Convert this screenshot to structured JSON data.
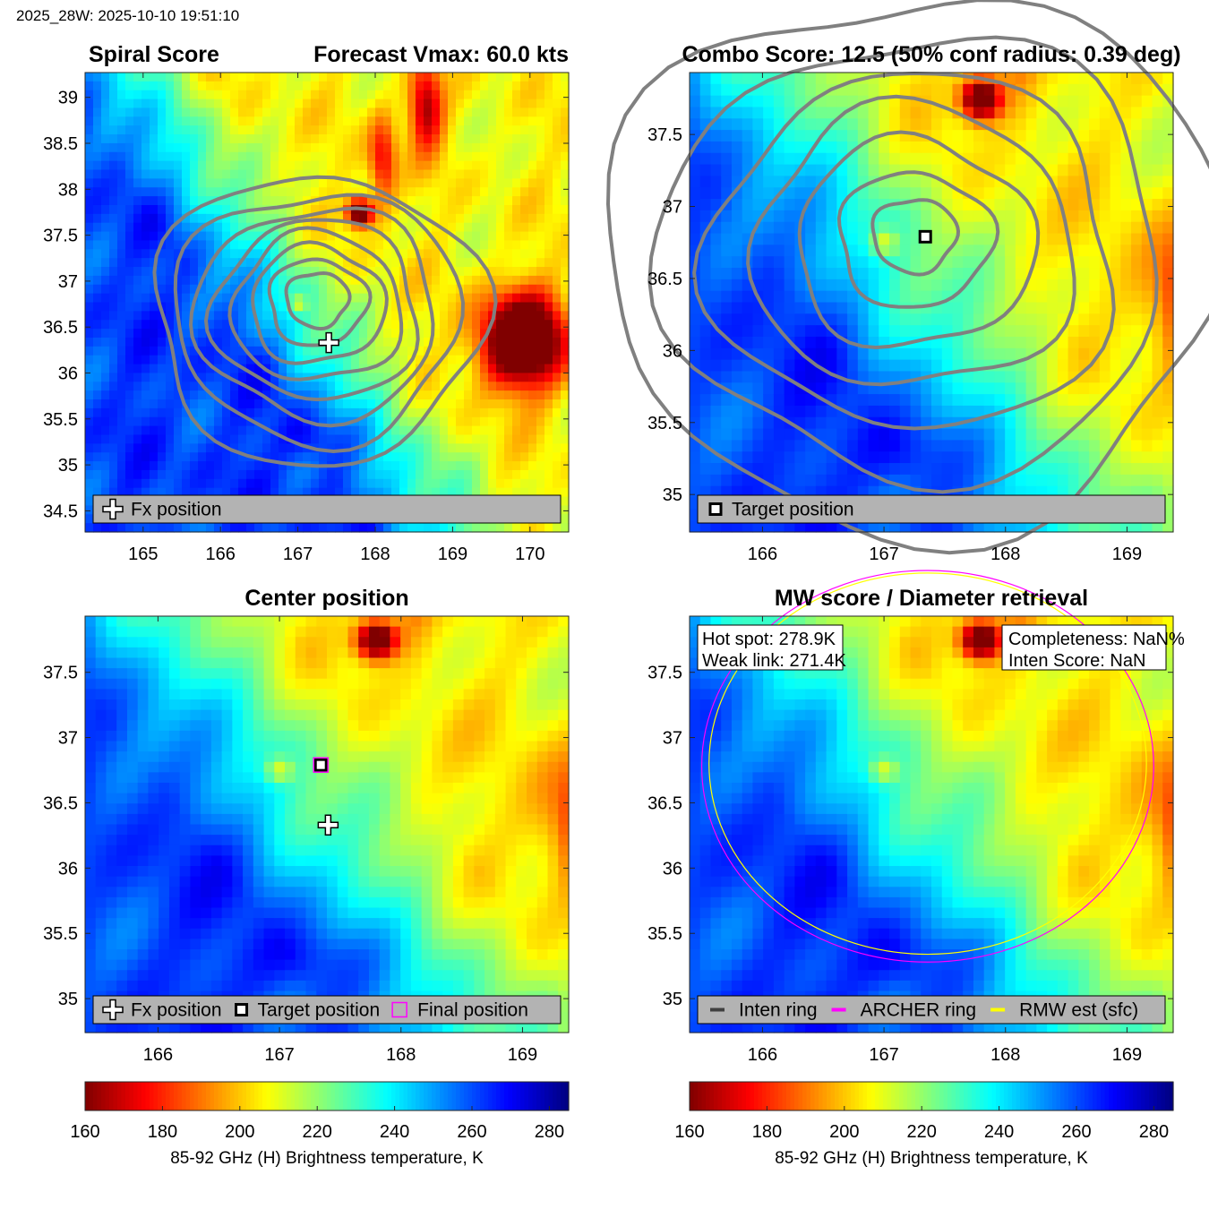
{
  "header": {
    "timestamp": "2025_28W: 2025-10-10 19:51:10"
  },
  "colors": {
    "contour": "#808080",
    "legend_bg": "#b3b3b3",
    "archer_ring": "#ff00ff",
    "rmw_ring": "#ffff00",
    "inten_ring": "#404040"
  },
  "colormap": {
    "name": "jet-reversed",
    "min": 160,
    "max": 285
  },
  "chart_data": [
    {
      "id": "spiral",
      "type": "heatmap",
      "title_left": "Spiral Score",
      "title_right": "Forecast Vmax: 60.0 kts",
      "xlim": [
        164.25,
        170.5
      ],
      "ylim": [
        34.27,
        39.27
      ],
      "xticks": [
        "165",
        "166",
        "167",
        "168",
        "169",
        "170"
      ],
      "xtick_values": [
        165,
        166,
        167,
        168,
        169,
        170
      ],
      "yticks": [
        "34.5",
        "35",
        "35.5",
        "36",
        "36.5",
        "37",
        "37.5",
        "38",
        "38.5",
        "39"
      ],
      "ytick_values": [
        34.5,
        35,
        35.5,
        36,
        36.5,
        37,
        37.5,
        38,
        38.5,
        39
      ],
      "markers": [
        {
          "kind": "fx-plus",
          "x": 167.4,
          "y": 36.33
        }
      ],
      "legend": [
        {
          "icon": "fx-plus",
          "label": "Fx position"
        }
      ],
      "contours": true
    },
    {
      "id": "combo",
      "type": "heatmap",
      "title": "Combo Score: 12.5  (50% conf radius: 0.39 deg)",
      "xlim": [
        165.4,
        169.38
      ],
      "ylim": [
        34.74,
        37.93
      ],
      "xticks": [
        "166",
        "167",
        "168",
        "169"
      ],
      "xtick_values": [
        166,
        167,
        168,
        169
      ],
      "yticks": [
        "35",
        "35.5",
        "36",
        "36.5",
        "37",
        "37.5"
      ],
      "ytick_values": [
        35,
        35.5,
        36,
        36.5,
        37,
        37.5
      ],
      "markers": [
        {
          "kind": "target-square",
          "x": 167.34,
          "y": 36.79
        }
      ],
      "legend": [
        {
          "icon": "target-square",
          "label": "Target position"
        }
      ],
      "contours": true
    },
    {
      "id": "center",
      "type": "heatmap",
      "title": "Center position",
      "xlim": [
        165.4,
        169.38
      ],
      "ylim": [
        34.74,
        37.93
      ],
      "xticks": [
        "166",
        "167",
        "168",
        "169"
      ],
      "xtick_values": [
        166,
        167,
        168,
        169
      ],
      "yticks": [
        "35",
        "35.5",
        "36",
        "36.5",
        "37",
        "37.5"
      ],
      "ytick_values": [
        35,
        35.5,
        36,
        36.5,
        37,
        37.5
      ],
      "markers": [
        {
          "kind": "target-square",
          "x": 167.34,
          "y": 36.79
        },
        {
          "kind": "final-square",
          "x": 167.34,
          "y": 36.79
        },
        {
          "kind": "fx-plus",
          "x": 167.4,
          "y": 36.33
        }
      ],
      "legend": [
        {
          "icon": "fx-plus",
          "label": "Fx position"
        },
        {
          "icon": "target-square",
          "label": "Target position"
        },
        {
          "icon": "final-square",
          "label": "Final position"
        }
      ],
      "contours": false
    },
    {
      "id": "mw",
      "type": "heatmap",
      "title": "MW score / Diameter retrieval",
      "xlim": [
        165.4,
        169.38
      ],
      "ylim": [
        34.74,
        37.93
      ],
      "xticks": [
        "166",
        "167",
        "168",
        "169"
      ],
      "xtick_values": [
        166,
        167,
        168,
        169
      ],
      "yticks": [
        "35",
        "35.5",
        "36",
        "36.5",
        "37",
        "37.5"
      ],
      "ytick_values": [
        35,
        35.5,
        36,
        36.5,
        37,
        37.5
      ],
      "rings": [
        {
          "kind": "archer",
          "cx": 167.36,
          "cy": 36.78,
          "rx_deg": 1.86,
          "ry_deg": 1.5
        },
        {
          "kind": "rmw",
          "cx": 167.36,
          "cy": 36.8,
          "rx_deg": 1.8,
          "ry_deg": 1.46
        }
      ],
      "info_left": [
        "Hot spot: 278.9K",
        "Weak link: 271.4K"
      ],
      "info_right": [
        "Completeness: NaN%",
        "Inten Score: NaN"
      ],
      "legend": [
        {
          "icon": "inten-line",
          "label": "Inten ring"
        },
        {
          "icon": "archer-line",
          "label": "ARCHER ring"
        },
        {
          "icon": "rmw-line",
          "label": "RMW est (sfc)"
        }
      ],
      "contours": false
    }
  ],
  "colorbars": [
    {
      "id": "cb-left",
      "ticks": [
        "160",
        "180",
        "200",
        "220",
        "240",
        "260",
        "280"
      ],
      "tick_values": [
        160,
        180,
        200,
        220,
        240,
        260,
        280
      ],
      "label": "85-92 GHz (H) Brightness temperature, K"
    },
    {
      "id": "cb-right",
      "ticks": [
        "160",
        "180",
        "200",
        "220",
        "240",
        "260",
        "280"
      ],
      "tick_values": [
        160,
        180,
        200,
        220,
        240,
        260,
        280
      ],
      "label": "85-92 GHz (H) Brightness temperature, K"
    }
  ]
}
